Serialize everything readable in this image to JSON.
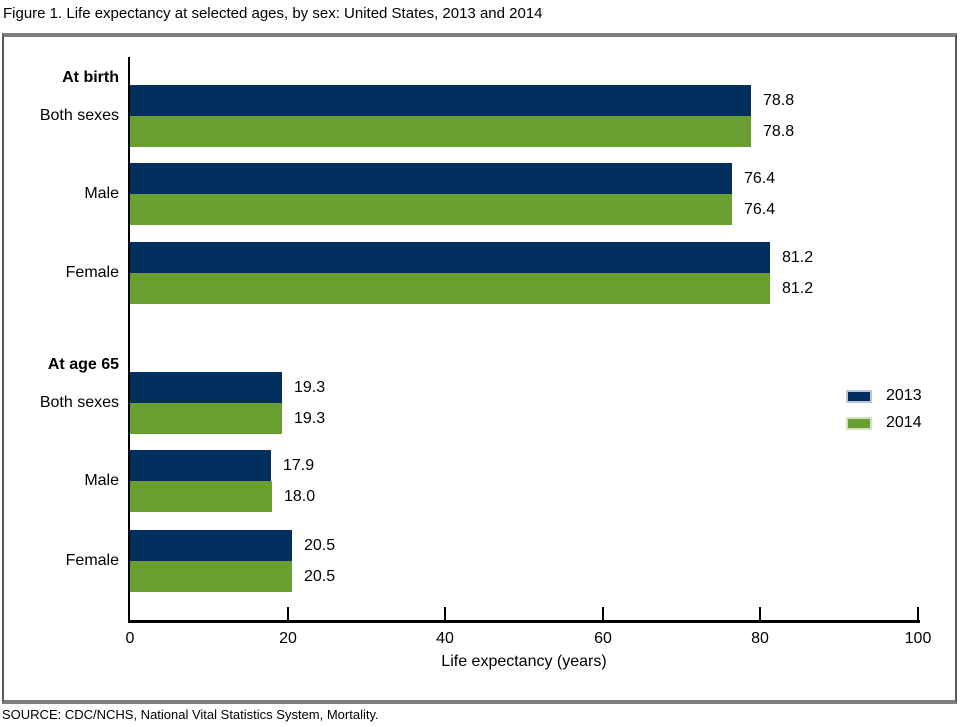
{
  "title": "Figure 1. Life expectancy at selected ages, by sex: United States, 2013 and 2014",
  "source": "SOURCE: CDC/NCHS, National Vital Statistics System, Mortality.",
  "colors": {
    "series_2013": "#022f5e",
    "series_2014": "#699f31",
    "legend_swatch_border_2013": "#b9c7d9",
    "legend_swatch_border_2014": "#d2e3bd",
    "frame_border": "#7f7f7f",
    "axis": "#000000"
  },
  "chart_data": {
    "type": "bar",
    "orientation": "horizontal",
    "title": "Figure 1. Life expectancy at selected ages, by sex: United States, 2013 and 2014",
    "xlabel": "Life expectancy (years)",
    "ylabel": "",
    "xlim": [
      0,
      100
    ],
    "xticks": [
      0,
      20,
      40,
      60,
      80,
      100
    ],
    "grid": false,
    "legend": {
      "position": "center-right",
      "entries": [
        {
          "label": "2013",
          "color": "#022f5e",
          "swatch_border": "#b9c7d9"
        },
        {
          "label": "2014",
          "color": "#699f31",
          "swatch_border": "#d2e3bd"
        }
      ]
    },
    "groups": [
      {
        "label": "At birth",
        "rows": [
          {
            "category": "Both sexes",
            "bars": [
              {
                "series": "2013",
                "value": 78.8,
                "label": "78.8"
              },
              {
                "series": "2014",
                "value": 78.8,
                "label": "78.8"
              }
            ]
          },
          {
            "category": "Male",
            "bars": [
              {
                "series": "2013",
                "value": 76.4,
                "label": "76.4"
              },
              {
                "series": "2014",
                "value": 76.4,
                "label": "76.4"
              }
            ]
          },
          {
            "category": "Female",
            "bars": [
              {
                "series": "2013",
                "value": 81.2,
                "label": "81.2"
              },
              {
                "series": "2014",
                "value": 81.2,
                "label": "81.2"
              }
            ]
          }
        ]
      },
      {
        "label": "At age 65",
        "rows": [
          {
            "category": "Both sexes",
            "bars": [
              {
                "series": "2013",
                "value": 19.3,
                "label": "19.3"
              },
              {
                "series": "2014",
                "value": 19.3,
                "label": "19.3"
              }
            ]
          },
          {
            "category": "Male",
            "bars": [
              {
                "series": "2013",
                "value": 17.9,
                "label": "17.9"
              },
              {
                "series": "2014",
                "value": 18.0,
                "label": "18.0"
              }
            ]
          },
          {
            "category": "Female",
            "bars": [
              {
                "series": "2013",
                "value": 20.5,
                "label": "20.5"
              },
              {
                "series": "2014",
                "value": 20.5,
                "label": "20.5"
              }
            ]
          }
        ]
      }
    ]
  }
}
